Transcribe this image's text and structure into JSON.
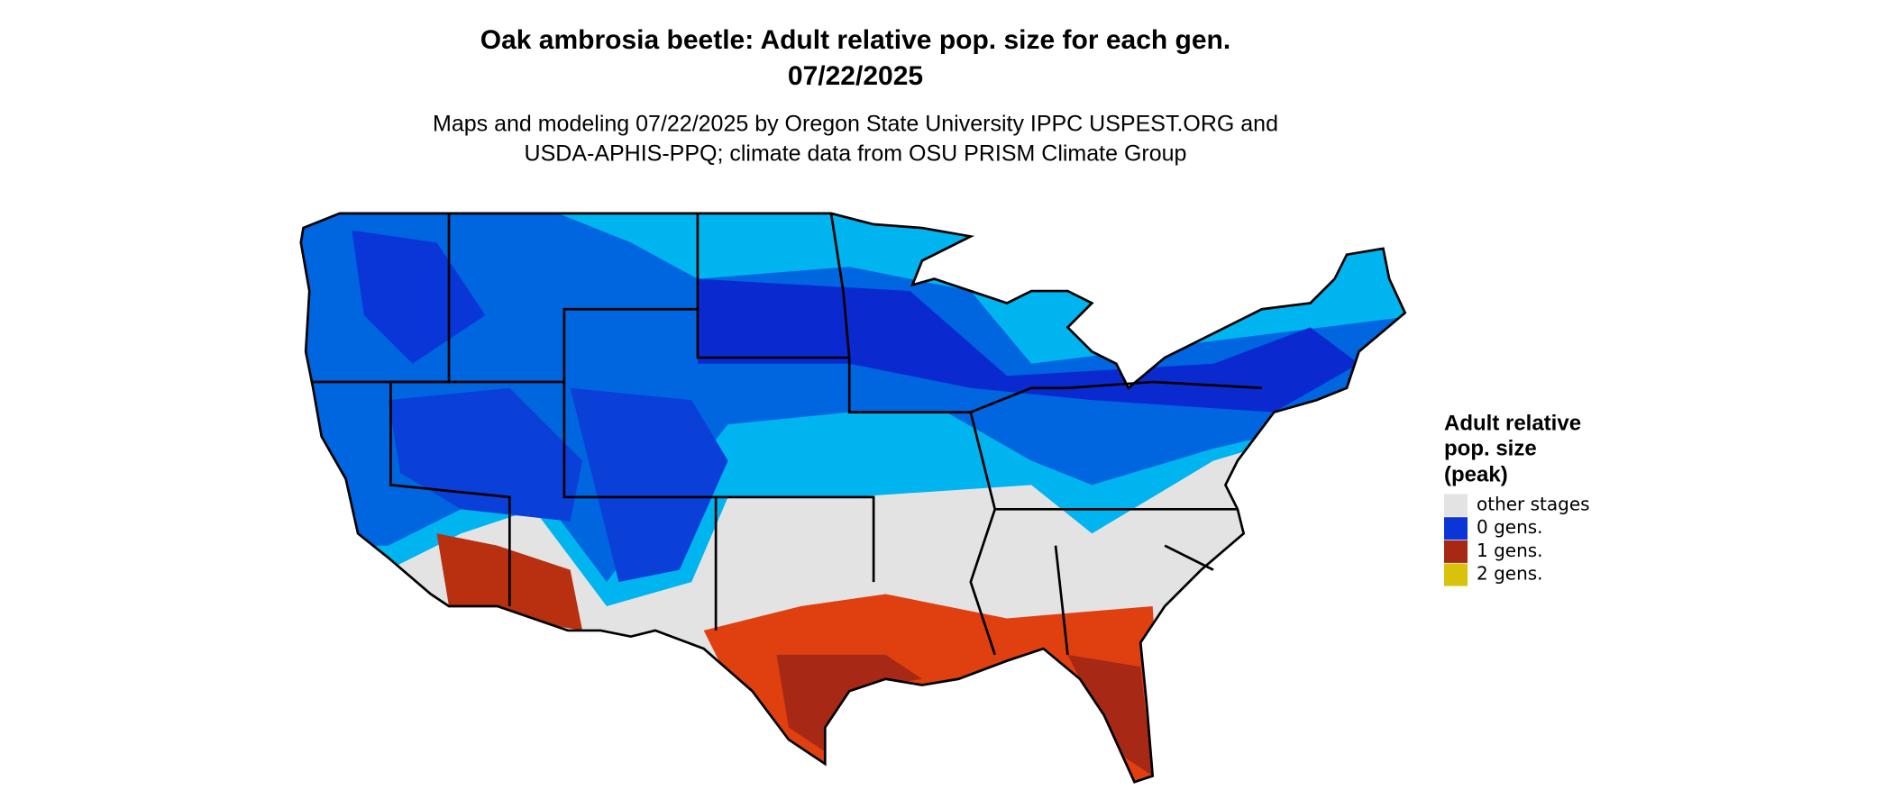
{
  "title": [
    "Oak ambrosia beetle: Adult relative pop. size for each gen.",
    "07/22/2025"
  ],
  "subtitle": [
    "Maps and modeling 07/22/2025 by Oregon State University IPPC USPEST.ORG and",
    "USDA-APHIS-PPQ; climate data from OSU PRISM Climate Group"
  ],
  "legend": {
    "title": [
      "Adult relative",
      "pop. size",
      "(peak)"
    ],
    "items": [
      {
        "label": "other stages",
        "color": "#e3e3e3"
      },
      {
        "label": "0 gens.",
        "color": "#0a36d8"
      },
      {
        "label": "1 gens.",
        "color": "#a82816"
      },
      {
        "label": "2 gens.",
        "color": "#d8c20a"
      }
    ]
  }
}
